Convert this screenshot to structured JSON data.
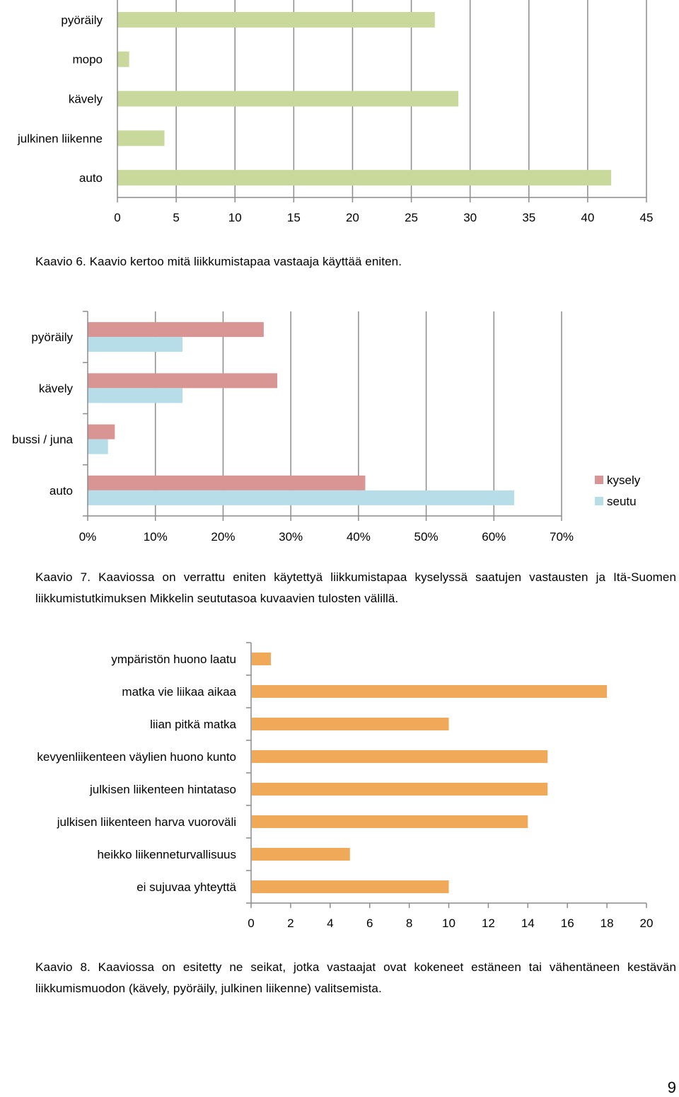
{
  "chart_data": [
    {
      "type": "bar",
      "orientation": "horizontal",
      "categories": [
        "pyöräily",
        "mopo",
        "kävely",
        "julkinen liikenne",
        "auto"
      ],
      "values": [
        27,
        1,
        29,
        4,
        42
      ],
      "xlim": [
        0,
        45
      ],
      "x_ticks": [
        "0",
        "5",
        "10",
        "15",
        "20",
        "25",
        "30",
        "35",
        "40",
        "45"
      ],
      "grid": true,
      "color": "#c9d99c"
    },
    {
      "type": "bar",
      "orientation": "horizontal",
      "categories": [
        "pyöräily",
        "kävely",
        "bussi / juna",
        "auto"
      ],
      "series": [
        {
          "name": "kysely",
          "values": [
            26,
            28,
            4,
            41
          ],
          "color": "#d99594"
        },
        {
          "name": "seutu",
          "values": [
            14,
            14,
            3,
            63
          ],
          "color": "#b7dde8"
        }
      ],
      "xlim": [
        0,
        70
      ],
      "x_ticks": [
        "0%",
        "10%",
        "20%",
        "30%",
        "40%",
        "50%",
        "60%",
        "70%"
      ],
      "grid": true,
      "legend": "right"
    },
    {
      "type": "bar",
      "orientation": "horizontal",
      "categories": [
        "ympäristön huono laatu",
        "matka vie liikaa aikaa",
        "liian pitkä matka",
        "kevyenliikenteen väylien huono kunto",
        "julkisen liikenteen hintataso",
        "julkisen liikenteen harva vuoroväli",
        "heikko liikenneturvallisuus",
        "ei sujuvaa yhteyttä"
      ],
      "values": [
        1,
        18,
        10,
        15,
        15,
        14,
        5,
        10
      ],
      "xlim": [
        0,
        20
      ],
      "x_ticks": [
        "0",
        "2",
        "4",
        "6",
        "8",
        "10",
        "12",
        "14",
        "16",
        "18",
        "20"
      ],
      "grid": false,
      "color": "#f0a859"
    }
  ],
  "captions": {
    "kaavio6": "Kaavio 6. Kaavio kertoo mitä liikkumistapaa vastaaja käyttää eniten.",
    "kaavio7": "Kaavio 7. Kaaviossa on verrattu eniten käytettyä liikkumistapaa kyselyssä saatujen vastausten ja Itä-Suomen liikkumistutkimuksen Mikkelin seututasoa kuvaavien tulosten välillä.",
    "kaavio8": "Kaavio 8. Kaaviossa on esitetty ne seikat, jotka vastaajat ovat kokeneet estäneen tai vähentäneen kestävän liikkumismuodon (kävely, pyöräily, julkinen liikenne) valitsemista."
  },
  "page_number": "9"
}
